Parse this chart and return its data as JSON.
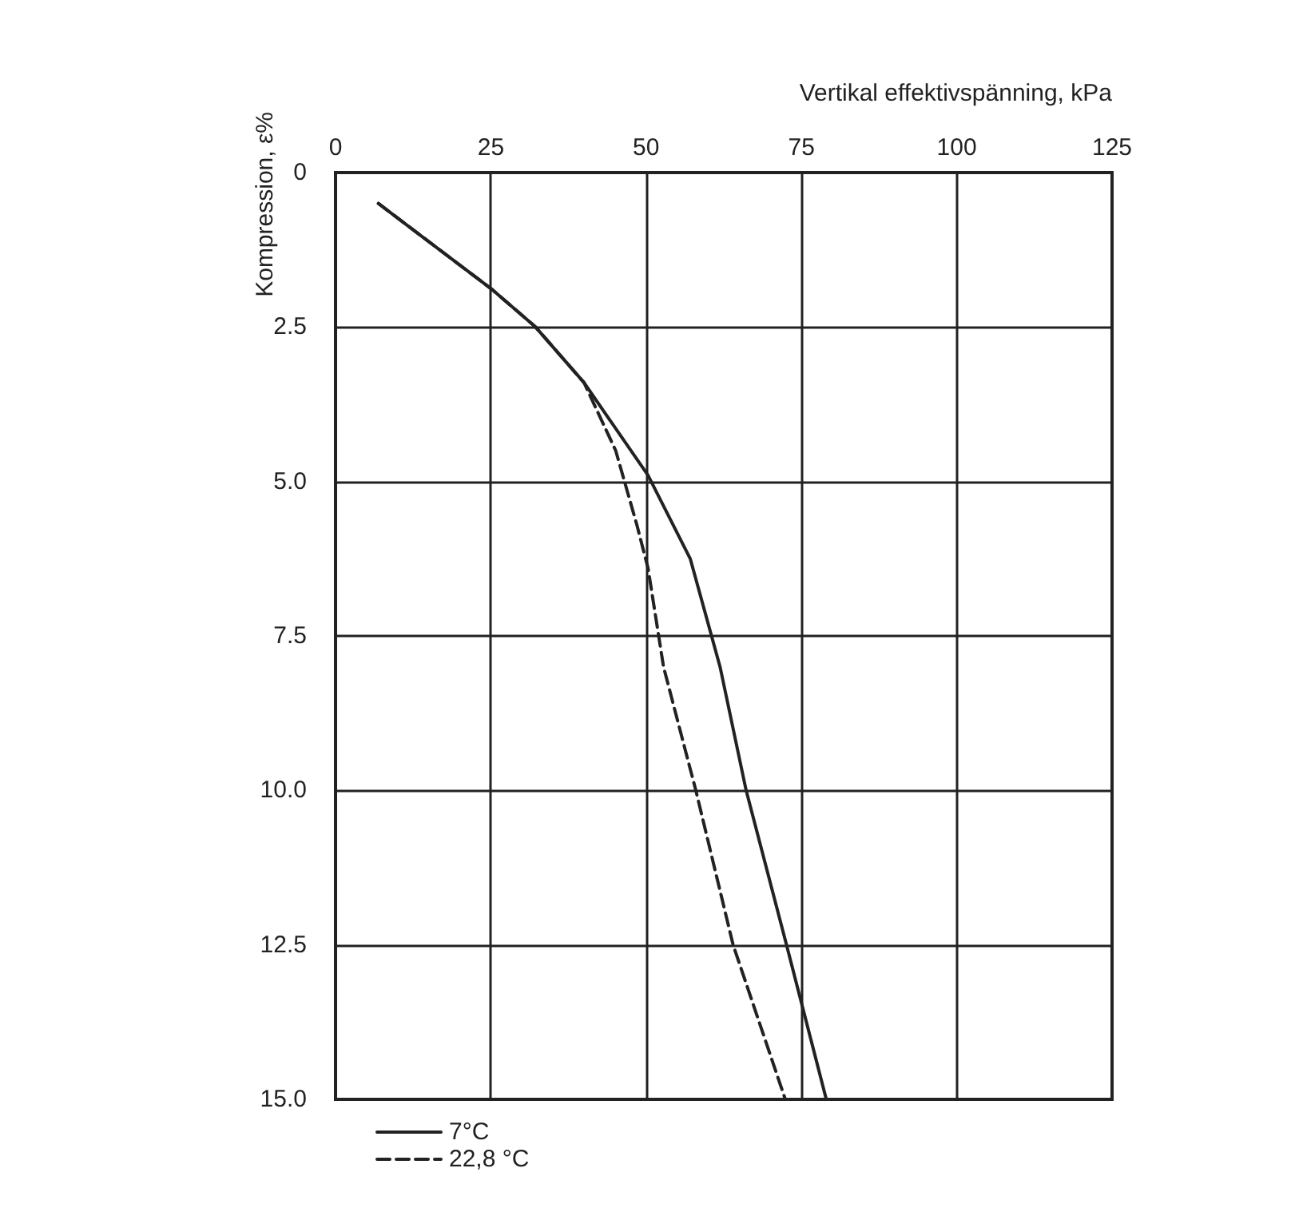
{
  "chart_data": {
    "type": "line",
    "xlabel": "Vertikal effektivspänning, kPa",
    "ylabel": "Kompression, ε%",
    "xlim": [
      0,
      125
    ],
    "xticks": [
      0,
      25,
      50,
      75,
      100,
      125
    ],
    "ylim": [
      15,
      0
    ],
    "yticks": [
      0,
      2.5,
      {
        "value": 5,
        "label": "5.0"
      },
      7.5,
      {
        "value": 10,
        "label": "10.0"
      },
      12.5,
      {
        "value": 15,
        "label": "15.0"
      }
    ],
    "grid": true,
    "legend": "bottom left",
    "series": [
      {
        "name": "7°C",
        "color": "#222222",
        "line_style": "solid",
        "x": [
          6.9,
          25.3,
          32.2,
          40,
          50.3,
          57.1,
          61.9,
          66.1,
          72.6,
          79
        ],
        "values": [
          0.5,
          1.9,
          2.5,
          3.4,
          4.9,
          6.25,
          8,
          10,
          12.5,
          15
        ]
      },
      {
        "name": "22,8 °C",
        "color": "#222222",
        "line_style": "dashed",
        "x": [
          6.9,
          25.3,
          32.2,
          40,
          45.1,
          48.5,
          50.3,
          52.8,
          58,
          64,
          72.4
        ],
        "values": [
          0.5,
          1.9,
          2.5,
          3.4,
          4.5,
          5.7,
          6.4,
          8,
          10,
          12.5,
          15
        ]
      }
    ]
  }
}
